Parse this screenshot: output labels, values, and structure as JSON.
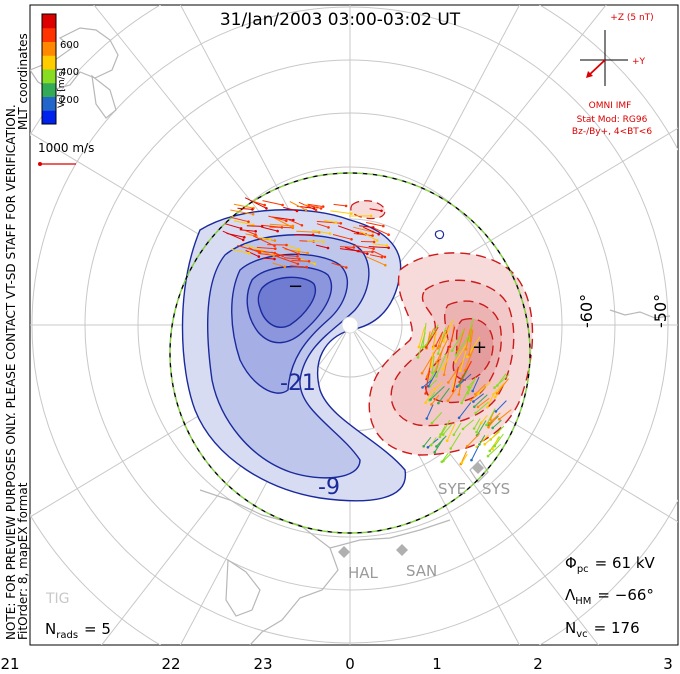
{
  "title": "31/Jan/2003 03:00-03:02 UT",
  "side_note": "NOTE: FOR PREVIEW PURPOSES ONLY. PLEASE CONTACT VT-SD STAFF FOR VERIFICATION.",
  "fit_order": "FitOrder: 8, mapEX format",
  "coords_label": "MLT coordinates",
  "colorbar": {
    "label": "Vel [m/s]",
    "ticks": [
      "600",
      "400",
      "200"
    ],
    "colors": [
      "#0022ee",
      "#2266cc",
      "#33aa55",
      "#88dd22",
      "#ffcc00",
      "#ff8800",
      "#ff3300",
      "#dd0000"
    ]
  },
  "scale_vector": {
    "label": "1000 m/s",
    "color": "#dd0000"
  },
  "imf": {
    "z_label": "+Z (5 nT)",
    "y_label": "+Y",
    "source": "OMNI IMF",
    "stat_mod": "Stat Mod: RG96",
    "condition": "Bz-/By+, 4<BT<6"
  },
  "lat_labels": [
    "-60°",
    "-50°"
  ],
  "mlt_labels": [
    "21",
    "22",
    "23",
    "0",
    "1",
    "2",
    "3"
  ],
  "contour_labels": [
    "-21",
    "-9"
  ],
  "potential_markers": {
    "min": "−",
    "max": "+"
  },
  "radars": [
    "HAL",
    "SAN",
    "SYS",
    "SYE",
    "TIG"
  ],
  "stats": {
    "n_rads_label": "N",
    "n_rads_sub": "rads",
    "n_rads_value": "= 5",
    "phi_label": "Φ",
    "phi_sub": "pc",
    "phi_value": "= 61 kV",
    "lambda_label": "Λ",
    "lambda_sub": "HM",
    "lambda_value": "= −66°",
    "nvc_label": "N",
    "nvc_sub": "vc",
    "nvc_value": "= 176"
  }
}
